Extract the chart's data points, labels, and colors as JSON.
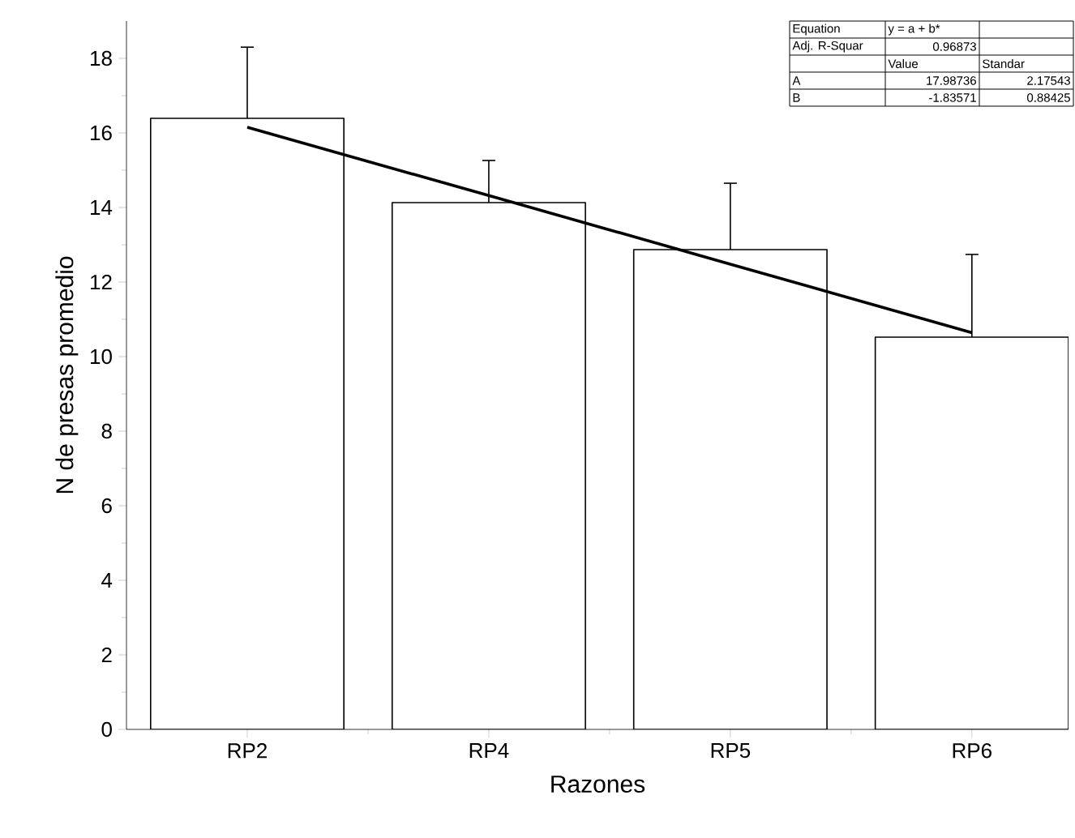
{
  "chart_data": {
    "type": "bar",
    "xlabel": "Razones",
    "ylabel": "N de presas promedio",
    "categories": [
      "RP2",
      "RP4",
      "RP5",
      "RP6"
    ],
    "series": [
      {
        "color": "#ffffff",
        "values": [
          16.39,
          14.13,
          12.87,
          10.52
        ],
        "errors": [
          [
            16.39,
            18.3
          ],
          [
            14.13,
            15.26
          ],
          [
            12.87,
            14.65
          ],
          [
            10.52,
            12.74
          ]
        ]
      },
      {
        "type": "line",
        "color": "#000000",
        "x": [
          "RP2",
          "RP4",
          "RP5",
          "RP6"
        ],
        "values": [
          16.15,
          14.32,
          12.48,
          10.64
        ]
      }
    ],
    "ylim": [
      0,
      19
    ],
    "yticks": [
      0,
      2,
      4,
      6,
      8,
      10,
      12,
      14,
      16,
      18
    ],
    "grid": false,
    "annotations": [
      "Equation",
      "y = a + b*",
      "Adj. R-Squar",
      "0.96873",
      "Value",
      "Standar",
      "A",
      "17.98736",
      "2.17543",
      "B",
      "-1.83571",
      "0.88425"
    ]
  }
}
